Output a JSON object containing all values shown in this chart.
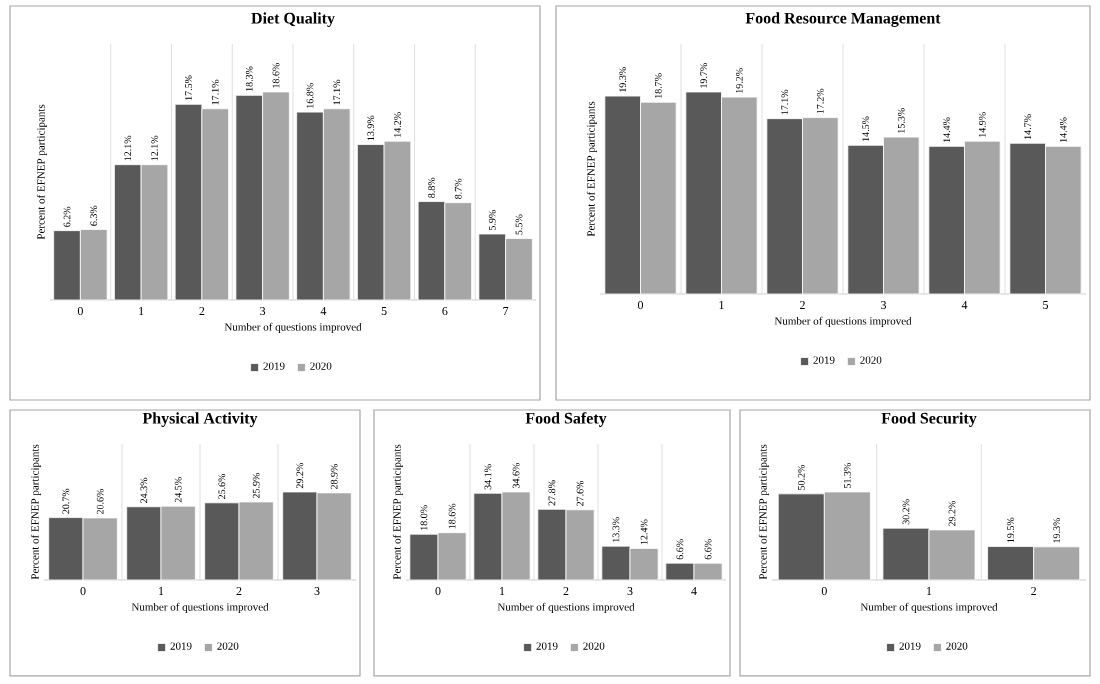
{
  "chart_data": [
    {
      "type": "bar",
      "title": "Diet Quality",
      "xlabel": "Number of questions improved",
      "ylabel": "Percent of EFNEP participants",
      "categories": [
        "0",
        "1",
        "2",
        "3",
        "4",
        "5",
        "6",
        "7"
      ],
      "series": [
        {
          "name": "2019",
          "color": "#595959",
          "values": [
            6.2,
            12.1,
            17.5,
            18.3,
            16.8,
            13.9,
            8.8,
            5.9
          ],
          "value_labels": [
            "6.2%",
            "12.1%",
            "17.5%",
            "18.3%",
            "16.8%",
            "13.9%",
            "8.8%",
            "5.9%"
          ]
        },
        {
          "name": "2020",
          "color": "#a6a6a6",
          "values": [
            6.3,
            12.1,
            17.1,
            18.6,
            17.1,
            14.2,
            8.7,
            5.5
          ],
          "value_labels": [
            "6.3%",
            "12.1%",
            "17.1%",
            "18.6%",
            "17.1%",
            "14.2%",
            "8.7%",
            "5.5%"
          ]
        }
      ],
      "legend": "bottom",
      "grid": "x",
      "tick_labels": "x"
    },
    {
      "type": "bar",
      "title": "Food Resource Management",
      "xlabel": "Number of questions improved",
      "ylabel": "Percent of EFNEP participants",
      "categories": [
        "0",
        "1",
        "2",
        "3",
        "4",
        "5"
      ],
      "series": [
        {
          "name": "2019",
          "color": "#595959",
          "values": [
            19.3,
            19.7,
            17.1,
            14.5,
            14.4,
            14.7
          ],
          "value_labels": [
            "19.3%",
            "19.7%",
            "17.1%",
            "14.5%",
            "14.4%",
            "14.7%"
          ]
        },
        {
          "name": "2020",
          "color": "#a6a6a6",
          "values": [
            18.7,
            19.2,
            17.2,
            15.3,
            14.9,
            14.4
          ],
          "value_labels": [
            "18.7%",
            "19.2%",
            "17.2%",
            "15.3%",
            "14.9%",
            "14.4%"
          ]
        }
      ],
      "legend": "bottom",
      "grid": "x",
      "tick_labels": "x"
    },
    {
      "type": "bar",
      "title": "Physical Activity",
      "xlabel": "Number of questions improved",
      "ylabel": "Percent of EFNEP participants",
      "categories": [
        "0",
        "1",
        "2",
        "3"
      ],
      "series": [
        {
          "name": "2019",
          "color": "#595959",
          "values": [
            20.7,
            24.3,
            25.6,
            29.2
          ],
          "value_labels": [
            "20.7%",
            "24.3%",
            "25.6%",
            "29.2%"
          ]
        },
        {
          "name": "2020",
          "color": "#a6a6a6",
          "values": [
            20.6,
            24.5,
            25.9,
            28.9
          ],
          "value_labels": [
            "20.6%",
            "24.5%",
            "25.9%",
            "28.9%"
          ]
        }
      ],
      "legend": "bottom",
      "grid": "x",
      "tick_labels": "x"
    },
    {
      "type": "bar",
      "title": "Food Safety",
      "xlabel": "Number of questions improved",
      "ylabel": "Percent of EFNEP participants",
      "categories": [
        "0",
        "1",
        "2",
        "3",
        "4"
      ],
      "series": [
        {
          "name": "2019",
          "color": "#595959",
          "values": [
            18.0,
            34.1,
            27.8,
            13.3,
            6.6
          ],
          "value_labels": [
            "18.0%",
            "34.1%",
            "27.8%",
            "13.3%",
            "6.6%"
          ]
        },
        {
          "name": "2020",
          "color": "#a6a6a6",
          "values": [
            18.6,
            34.6,
            27.6,
            12.4,
            6.6
          ],
          "value_labels": [
            "18.6%",
            "34.6%",
            "27.6%",
            "12.4%",
            "6.6%"
          ]
        }
      ],
      "legend": "bottom",
      "grid": "x",
      "tick_labels": "x"
    },
    {
      "type": "bar",
      "title": "Food Security",
      "xlabel": "Number of questions improved",
      "ylabel": "Percent of EFNEP participants",
      "categories": [
        "0",
        "1",
        "2"
      ],
      "series": [
        {
          "name": "2019",
          "color": "#595959",
          "values": [
            50.2,
            30.2,
            19.5
          ],
          "value_labels": [
            "50.2%",
            "30.2%",
            "19.5%"
          ]
        },
        {
          "name": "2020",
          "color": "#a6a6a6",
          "values": [
            51.3,
            29.2,
            19.3
          ],
          "value_labels": [
            "51.3%",
            "29.2%",
            "19.3%"
          ]
        }
      ],
      "legend": "bottom",
      "grid": "x",
      "tick_labels": "x"
    }
  ]
}
